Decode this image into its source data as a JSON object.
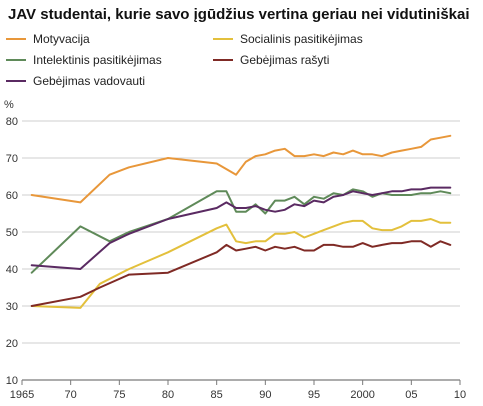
{
  "chart_data": {
    "type": "line",
    "title": "JAV studentai, kurie savo įgūdžius vertina geriau nei vidutiniškai",
    "ylabel": "%",
    "xlabel": "",
    "xlim": [
      1965,
      2010
    ],
    "ylim": [
      10,
      80
    ],
    "x_ticks": [
      {
        "value": 1965,
        "label": "1965"
      },
      {
        "value": 1970,
        "label": "70"
      },
      {
        "value": 1975,
        "label": "75"
      },
      {
        "value": 1980,
        "label": "80"
      },
      {
        "value": 1985,
        "label": "85"
      },
      {
        "value": 1990,
        "label": "90"
      },
      {
        "value": 1995,
        "label": "95"
      },
      {
        "value": 2000,
        "label": "2000"
      },
      {
        "value": 2005,
        "label": "05"
      },
      {
        "value": 2010,
        "label": "10"
      }
    ],
    "y_ticks": [
      10,
      20,
      30,
      40,
      50,
      60,
      70,
      80
    ],
    "grid": "horizontal",
    "legend_position": "top",
    "series": [
      {
        "name": "Motyvacija",
        "color": "#e8973a",
        "points": [
          [
            1966,
            60
          ],
          [
            1971,
            58
          ],
          [
            1974,
            65.5
          ],
          [
            1976,
            67.5
          ],
          [
            1980,
            70
          ],
          [
            1985,
            68.5
          ],
          [
            1986,
            67
          ],
          [
            1987,
            65.5
          ],
          [
            1988,
            69
          ],
          [
            1989,
            70.5
          ],
          [
            1990,
            71
          ],
          [
            1991,
            72
          ],
          [
            1992,
            72.5
          ],
          [
            1993,
            70.5
          ],
          [
            1994,
            70.5
          ],
          [
            1995,
            71
          ],
          [
            1996,
            70.5
          ],
          [
            1997,
            71.5
          ],
          [
            1998,
            71
          ],
          [
            1999,
            72
          ],
          [
            2000,
            71
          ],
          [
            2001,
            71
          ],
          [
            2002,
            70.5
          ],
          [
            2003,
            71.5
          ],
          [
            2004,
            72
          ],
          [
            2005,
            72.5
          ],
          [
            2006,
            73
          ],
          [
            2007,
            75
          ],
          [
            2008,
            75.5
          ],
          [
            2009,
            76
          ]
        ]
      },
      {
        "name": "Socialinis pasitikėjimas",
        "color": "#e3c03c",
        "points": [
          [
            1966,
            30
          ],
          [
            1971,
            29.5
          ],
          [
            1973,
            36
          ],
          [
            1976,
            40
          ],
          [
            1980,
            44.5
          ],
          [
            1985,
            51
          ],
          [
            1986,
            52
          ],
          [
            1987,
            47.5
          ],
          [
            1988,
            47
          ],
          [
            1989,
            47.5
          ],
          [
            1990,
            47.5
          ],
          [
            1991,
            49.5
          ],
          [
            1992,
            49.5
          ],
          [
            1993,
            50
          ],
          [
            1994,
            48.5
          ],
          [
            1995,
            49.5
          ],
          [
            1996,
            50.5
          ],
          [
            1997,
            51.5
          ],
          [
            1998,
            52.5
          ],
          [
            1999,
            53
          ],
          [
            2000,
            53
          ],
          [
            2001,
            51
          ],
          [
            2002,
            50.5
          ],
          [
            2003,
            50.5
          ],
          [
            2004,
            51.5
          ],
          [
            2005,
            53
          ],
          [
            2006,
            53
          ],
          [
            2007,
            53.5
          ],
          [
            2008,
            52.5
          ],
          [
            2009,
            52.5
          ]
        ]
      },
      {
        "name": "Intelektinis pasitikėjimas",
        "color": "#5f8a59",
        "points": [
          [
            1966,
            39
          ],
          [
            1971,
            51.5
          ],
          [
            1974,
            47.5
          ],
          [
            1976,
            50
          ],
          [
            1980,
            53.5
          ],
          [
            1985,
            61
          ],
          [
            1986,
            61
          ],
          [
            1987,
            55.5
          ],
          [
            1988,
            55.5
          ],
          [
            1989,
            57.5
          ],
          [
            1990,
            55
          ],
          [
            1991,
            58.5
          ],
          [
            1992,
            58.5
          ],
          [
            1993,
            59.5
          ],
          [
            1994,
            57.5
          ],
          [
            1995,
            59.5
          ],
          [
            1996,
            59
          ],
          [
            1997,
            60.5
          ],
          [
            1998,
            60
          ],
          [
            1999,
            61.5
          ],
          [
            2000,
            61
          ],
          [
            2001,
            59.5
          ],
          [
            2002,
            60.5
          ],
          [
            2003,
            60
          ],
          [
            2004,
            60
          ],
          [
            2005,
            60
          ],
          [
            2006,
            60.5
          ],
          [
            2007,
            60.5
          ],
          [
            2008,
            61
          ],
          [
            2009,
            60.5
          ]
        ]
      },
      {
        "name": "Gebėjimas rašyti",
        "color": "#7f2a25",
        "points": [
          [
            1966,
            30
          ],
          [
            1971,
            32.5
          ],
          [
            1973,
            35
          ],
          [
            1976,
            38.5
          ],
          [
            1980,
            39
          ],
          [
            1985,
            44.5
          ],
          [
            1986,
            46.5
          ],
          [
            1987,
            45
          ],
          [
            1988,
            45.5
          ],
          [
            1989,
            46
          ],
          [
            1990,
            45
          ],
          [
            1991,
            46
          ],
          [
            1992,
            45.5
          ],
          [
            1993,
            46
          ],
          [
            1994,
            45
          ],
          [
            1995,
            45
          ],
          [
            1996,
            46.5
          ],
          [
            1997,
            46.5
          ],
          [
            1998,
            46
          ],
          [
            1999,
            46
          ],
          [
            2000,
            47
          ],
          [
            2001,
            46
          ],
          [
            2002,
            46.5
          ],
          [
            2003,
            47
          ],
          [
            2004,
            47
          ],
          [
            2005,
            47.5
          ],
          [
            2006,
            47.5
          ],
          [
            2007,
            46
          ],
          [
            2008,
            47.5
          ],
          [
            2009,
            46.5
          ]
        ]
      },
      {
        "name": "Gebėjimas vadovauti",
        "color": "#5a2a62",
        "points": [
          [
            1966,
            41
          ],
          [
            1971,
            40
          ],
          [
            1974,
            47
          ],
          [
            1976,
            49.5
          ],
          [
            1980,
            53.5
          ],
          [
            1985,
            56.5
          ],
          [
            1986,
            58
          ],
          [
            1987,
            56.5
          ],
          [
            1988,
            56.5
          ],
          [
            1989,
            57
          ],
          [
            1990,
            56
          ],
          [
            1991,
            55.5
          ],
          [
            1992,
            56
          ],
          [
            1993,
            57.5
          ],
          [
            1994,
            57
          ],
          [
            1995,
            58.5
          ],
          [
            1996,
            58
          ],
          [
            1997,
            59.5
          ],
          [
            1998,
            60
          ],
          [
            1999,
            61
          ],
          [
            2000,
            60.5
          ],
          [
            2001,
            60
          ],
          [
            2002,
            60.5
          ],
          [
            2003,
            61
          ],
          [
            2004,
            61
          ],
          [
            2005,
            61.5
          ],
          [
            2006,
            61.5
          ],
          [
            2007,
            62
          ],
          [
            2008,
            62
          ],
          [
            2009,
            62
          ]
        ]
      }
    ]
  }
}
